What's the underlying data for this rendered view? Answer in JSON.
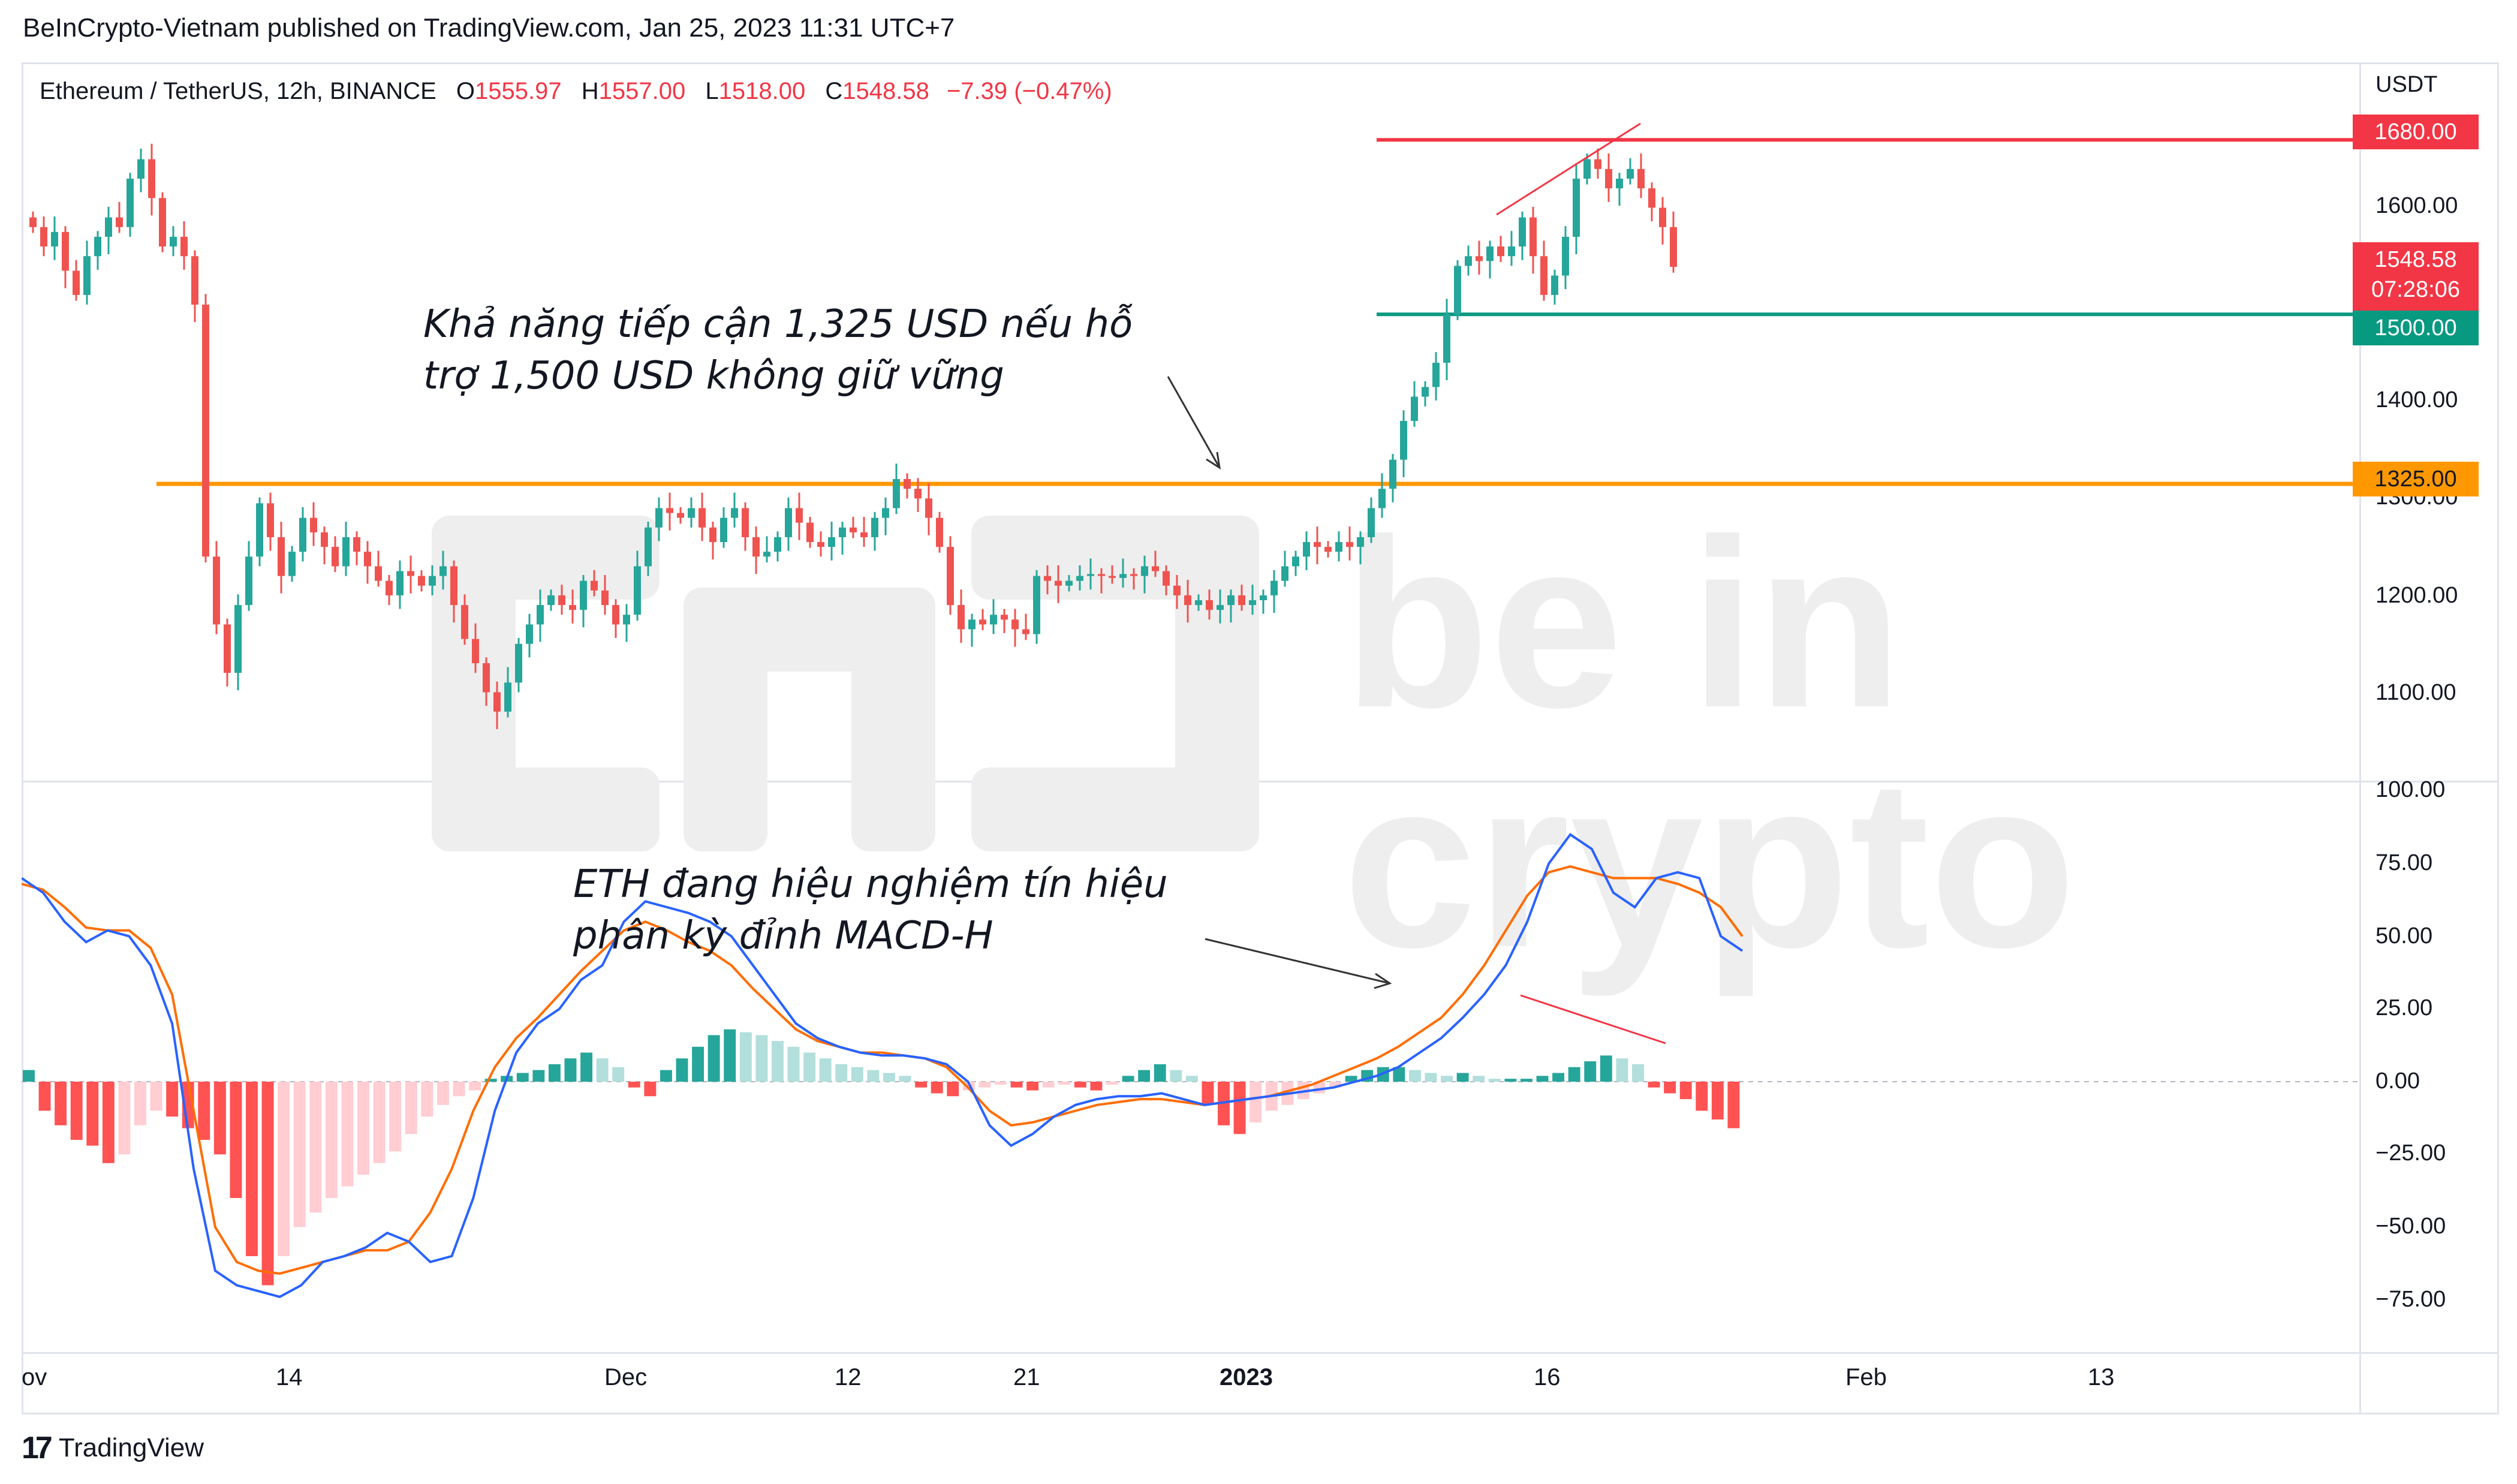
{
  "header": {
    "published_line": "BeInCrypto-Vietnam published on TradingView.com, Jan 25, 2023 11:31 UTC+7"
  },
  "legend": {
    "symbol": "Ethereum / TetherUS, 12h, BINANCE",
    "open_label": "O",
    "open": "1555.97",
    "high_label": "H",
    "high": "1557.00",
    "low_label": "L",
    "low": "1518.00",
    "close_label": "C",
    "close": "1548.58",
    "change": "−7.39 (−0.47%)"
  },
  "axis": {
    "currency": "USDT",
    "price_ticks": [
      "1600.00",
      "1400.00",
      "1300.00",
      "1200.00",
      "1100.00"
    ],
    "indicator_ticks": [
      "100.00",
      "75.00",
      "50.00",
      "25.00",
      "0.00",
      "−25.00",
      "−50.00",
      "−75.00"
    ],
    "time_labels": [
      "ov",
      "14",
      "Dec",
      "12",
      "21",
      "2023",
      "16",
      "Feb",
      "13"
    ]
  },
  "badges": {
    "resistance": "1680.00",
    "last_price": "1548.58",
    "countdown": "07:28:06",
    "support": "1500.00",
    "level": "1325.00"
  },
  "annotations": {
    "price_note_line1": "Khả năng tiếp cận 1,325 USD nếu hỗ",
    "price_note_line2": "trợ 1,500 USD không giữ vững",
    "macd_note_line1": "ETH đang hiệu nghiệm tín hiệu",
    "macd_note_line2": "phân kỳ đỉnh MACD-H"
  },
  "watermark": {
    "line1": "be in",
    "line2": "crypto"
  },
  "footer": {
    "brand": "TradingView"
  },
  "colors": {
    "up": "#26a69a",
    "down": "#ef5350",
    "hist_up_strong": "#26a69a",
    "hist_up_weak": "#b2dfdb",
    "hist_down_strong": "#ff5252",
    "hist_down_weak": "#ffcdd2",
    "macd": "#2962ff",
    "signal": "#ff6d00",
    "resistance_line": "#f23645",
    "support_line": "#089981",
    "level_line": "#ff9800"
  },
  "chart_data": [
    {
      "type": "candlestick",
      "title": "Ethereum / TetherUS, 12h, BINANCE",
      "ylabel": "USDT",
      "ylim": [
        1020,
        1760
      ],
      "y_ticks": [
        1100,
        1200,
        1300,
        1400,
        1600
      ],
      "horizontal_levels": [
        1680,
        1500,
        1325
      ],
      "series": [
        {
          "name": "ETHUSDT",
          "close": [
            1590,
            1570,
            1585,
            1545,
            1520,
            1560,
            1580,
            1600,
            1590,
            1640,
            1660,
            1620,
            1570,
            1580,
            1560,
            1510,
            1250,
            1180,
            1130,
            1200,
            1250,
            1305,
            1270,
            1230,
            1255,
            1290,
            1275,
            1260,
            1240,
            1270,
            1255,
            1240,
            1225,
            1210,
            1235,
            1230,
            1220,
            1230,
            1240,
            1200,
            1165,
            1140,
            1110,
            1090,
            1120,
            1160,
            1180,
            1200,
            1210,
            1200,
            1195,
            1225,
            1215,
            1200,
            1180,
            1190,
            1240,
            1280,
            1300,
            1295,
            1290,
            1300,
            1280,
            1265,
            1290,
            1300,
            1270,
            1250,
            1255,
            1270,
            1300,
            1285,
            1265,
            1260,
            1270,
            1280,
            1275,
            1270,
            1290,
            1300,
            1330,
            1320,
            1310,
            1290,
            1260,
            1200,
            1175,
            1185,
            1180,
            1190,
            1185,
            1175,
            1170,
            1230,
            1225,
            1220,
            1225,
            1230,
            1232,
            1230,
            1228,
            1232,
            1230,
            1240,
            1235,
            1220,
            1210,
            1200,
            1205,
            1195,
            1200,
            1210,
            1200,
            1205,
            1210,
            1225,
            1240,
            1250,
            1265,
            1260,
            1255,
            1265,
            1260,
            1270,
            1300,
            1320,
            1350,
            1390,
            1415,
            1425,
            1450,
            1500,
            1550,
            1560,
            1555,
            1570,
            1560,
            1570,
            1600,
            1560,
            1520,
            1540,
            1580,
            1640,
            1660,
            1650,
            1630,
            1640,
            1650,
            1630,
            1610,
            1590,
            1549
          ]
        }
      ]
    },
    {
      "type": "bar",
      "title": "MACD",
      "ylim": [
        -90,
        110
      ],
      "y_ticks": [
        100,
        75,
        50,
        25,
        0,
        -25,
        -50,
        -75
      ],
      "series": [
        {
          "name": "histogram",
          "values": [
            4,
            -10,
            -15,
            -20,
            -22,
            -28,
            -25,
            -15,
            -10,
            -12,
            -16,
            -20,
            -25,
            -40,
            -60,
            -70,
            -60,
            -50,
            -45,
            -40,
            -36,
            -32,
            -28,
            -24,
            -18,
            -12,
            -8,
            -5,
            -3,
            1,
            2,
            3,
            4,
            6,
            8,
            10,
            8,
            5,
            -2,
            -5,
            4,
            8,
            12,
            16,
            18,
            17,
            16,
            14,
            12,
            10,
            8,
            6,
            5,
            4,
            3,
            2,
            -2,
            -4,
            -5,
            -3,
            -2,
            -1,
            -2,
            -3,
            -2,
            -1,
            -2,
            -3,
            -1,
            2,
            4,
            6,
            4,
            2,
            -8,
            -15,
            -18,
            -14,
            -10,
            -8,
            -6,
            -4,
            -2,
            2,
            4,
            5,
            5,
            4,
            3,
            2,
            3,
            2,
            1,
            1,
            1,
            2,
            3,
            5,
            7,
            9,
            8,
            6,
            -2,
            -4,
            -6,
            -10,
            -13,
            -16
          ],
          "note": "bars plotted left to right; positive in green shades, negative in red shades"
        },
        {
          "name": "macd_line",
          "values": [
            70,
            65,
            55,
            48,
            52,
            50,
            40,
            20,
            -30,
            -65,
            -70,
            -72,
            -74,
            -70,
            -62,
            -60,
            -57,
            -52,
            -55,
            -62,
            -60,
            -40,
            -10,
            10,
            20,
            25,
            35,
            40,
            55,
            62,
            60,
            58,
            55,
            50,
            40,
            30,
            20,
            15,
            12,
            10,
            9,
            9,
            8,
            6,
            0,
            -15,
            -22,
            -18,
            -12,
            -8,
            -6,
            -5,
            -5,
            -4,
            -6,
            -8,
            -7,
            -6,
            -5,
            -4,
            -3,
            -2,
            0,
            2,
            5,
            10,
            15,
            22,
            30,
            40,
            55,
            75,
            85,
            80,
            65,
            60,
            70,
            72,
            70,
            50,
            45
          ]
        },
        {
          "name": "signal_line",
          "values": [
            68,
            66,
            60,
            53,
            52,
            52,
            46,
            30,
            -10,
            -50,
            -62,
            -65,
            -66,
            -64,
            -62,
            -60,
            -58,
            -58,
            -55,
            -45,
            -30,
            -10,
            5,
            15,
            22,
            30,
            38,
            45,
            52,
            55,
            52,
            48,
            45,
            40,
            32,
            25,
            18,
            14,
            12,
            10,
            10,
            9,
            8,
            5,
            -2,
            -10,
            -15,
            -14,
            -12,
            -10,
            -8,
            -7,
            -6,
            -6,
            -7,
            -8,
            -7,
            -6,
            -5,
            -3,
            -1,
            2,
            5,
            8,
            12,
            17,
            22,
            30,
            40,
            52,
            64,
            72,
            74,
            72,
            70,
            70,
            70,
            68,
            65,
            60,
            50
          ]
        }
      ]
    }
  ]
}
